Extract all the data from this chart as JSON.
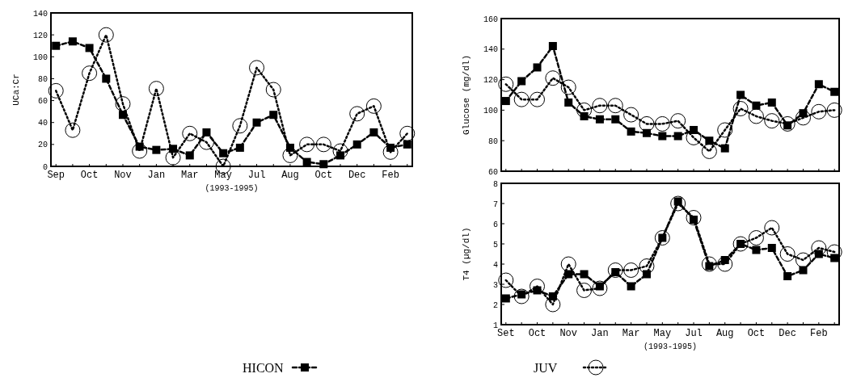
{
  "chart_data": [
    {
      "type": "line",
      "ylabel": "UCa:Cr",
      "xlabel": "(1993-1995)",
      "categories": [
        "Sep",
        null,
        "Oct",
        null,
        "Nov",
        null,
        "Jan",
        null,
        "Mar",
        null,
        "May",
        null,
        "Jul",
        null,
        "Aug",
        null,
        "Oct",
        null,
        "Dec",
        null,
        "Feb",
        null
      ],
      "ylim": [
        0,
        140
      ],
      "yticks": [
        0,
        20,
        40,
        60,
        80,
        100,
        120,
        140
      ],
      "legend": "bottom",
      "series": [
        {
          "name": "HICON",
          "color": "#000000",
          "marker": "square",
          "line_style": "dashed",
          "values": [
            110,
            114,
            108,
            80,
            47,
            18,
            15,
            16,
            10,
            31,
            12,
            17,
            40,
            47,
            17,
            4,
            2,
            10,
            20,
            31,
            17,
            20
          ]
        },
        {
          "name": "JUV",
          "color": "#000000",
          "marker": "circle",
          "line_style": "dotted",
          "values": [
            69,
            33,
            85,
            120,
            57,
            14,
            71,
            8,
            30,
            22,
            0,
            37,
            90,
            70,
            10,
            20,
            20,
            14,
            48,
            55,
            13,
            30
          ]
        }
      ]
    },
    {
      "type": "line",
      "ylabel": "Glucose (mg/dl)",
      "categories": [
        null,
        null,
        null,
        null,
        null,
        null,
        null,
        null,
        null,
        null,
        null,
        null,
        null,
        null,
        null,
        null,
        null,
        null,
        null,
        null,
        null,
        null
      ],
      "ylim": [
        60,
        160
      ],
      "yticks": [
        60,
        80,
        100,
        120,
        140,
        160
      ],
      "tick_labels": "y",
      "series": [
        {
          "color": "#000000",
          "marker": "square",
          "line_style": "dashed",
          "values": [
            106,
            119,
            128,
            142,
            105,
            96,
            94,
            94,
            86,
            85,
            83,
            83,
            87,
            80,
            75,
            110,
            103,
            105,
            90,
            98,
            117,
            112
          ]
        },
        {
          "color": "#000000",
          "marker": "circle",
          "line_style": "dotted",
          "values": [
            117,
            107,
            107,
            121,
            115,
            100,
            103,
            103,
            97,
            91,
            91,
            93,
            82,
            73,
            87,
            101,
            96,
            93,
            91,
            95,
            99,
            100
          ]
        }
      ]
    },
    {
      "type": "line",
      "ylabel": "T4 (µg/dl)",
      "xlabel": "(1993-1995)",
      "categories": [
        "Set",
        null,
        "Oct",
        null,
        "Nov",
        null,
        "Jan",
        null,
        "Mar",
        null,
        "May",
        null,
        "Jul",
        null,
        "Aug",
        null,
        "Oct",
        null,
        "Dec",
        null,
        "Feb",
        null
      ],
      "ylim": [
        1,
        8
      ],
      "yticks": [
        1,
        2,
        3,
        4,
        5,
        6,
        7,
        8
      ],
      "series": [
        {
          "color": "#000000",
          "marker": "square",
          "line_style": "dashed",
          "values": [
            2.3,
            2.5,
            2.7,
            2.4,
            3.5,
            3.5,
            2.9,
            3.6,
            2.9,
            3.5,
            5.3,
            7.1,
            6.2,
            3.9,
            4.2,
            5.0,
            4.7,
            4.8,
            3.4,
            3.7,
            4.5,
            4.3
          ]
        },
        {
          "color": "#000000",
          "marker": "circle",
          "line_style": "dotted",
          "values": [
            3.2,
            2.4,
            2.9,
            2.0,
            4.0,
            2.7,
            2.8,
            3.7,
            3.7,
            3.9,
            5.3,
            7.0,
            6.3,
            4.0,
            4.0,
            5.0,
            5.3,
            5.8,
            4.5,
            4.2,
            4.8,
            4.6
          ]
        }
      ]
    }
  ]
}
